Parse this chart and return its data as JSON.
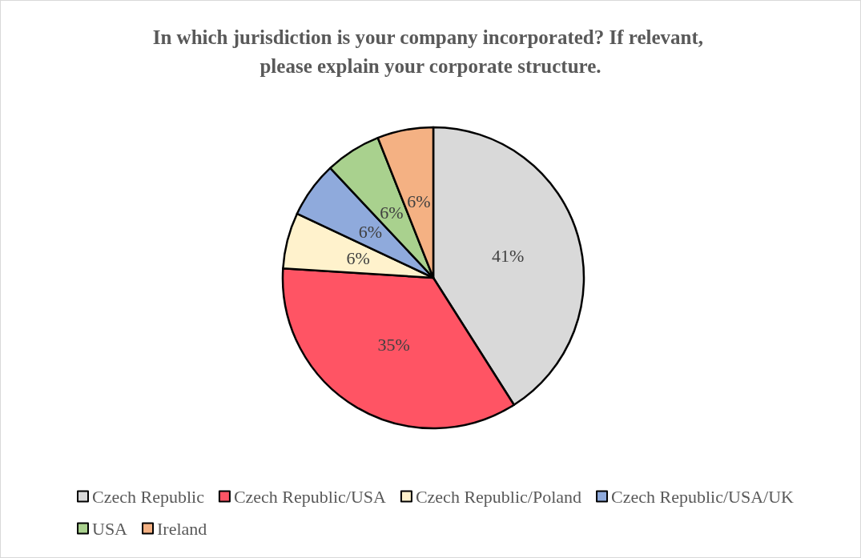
{
  "chart_data": {
    "type": "pie",
    "title": "In which jurisdiction is your company incorporated? If relevant, please explain your corporate structure.",
    "categories": [
      "Czech Republic",
      "Czech Republic/USA",
      "Czech Republic/Poland",
      "Czech Republic/USA/UK",
      "USA",
      "Ireland"
    ],
    "values": [
      41,
      35,
      6,
      6,
      6,
      6
    ],
    "value_labels": [
      "41%",
      "35%",
      "6%",
      "6%",
      "6%",
      "6%"
    ],
    "colors": [
      "#d9d9d9",
      "#ff5464",
      "#fff2cc",
      "#8faadc",
      "#a9d18e",
      "#f4b183"
    ],
    "legend": "bottom"
  }
}
